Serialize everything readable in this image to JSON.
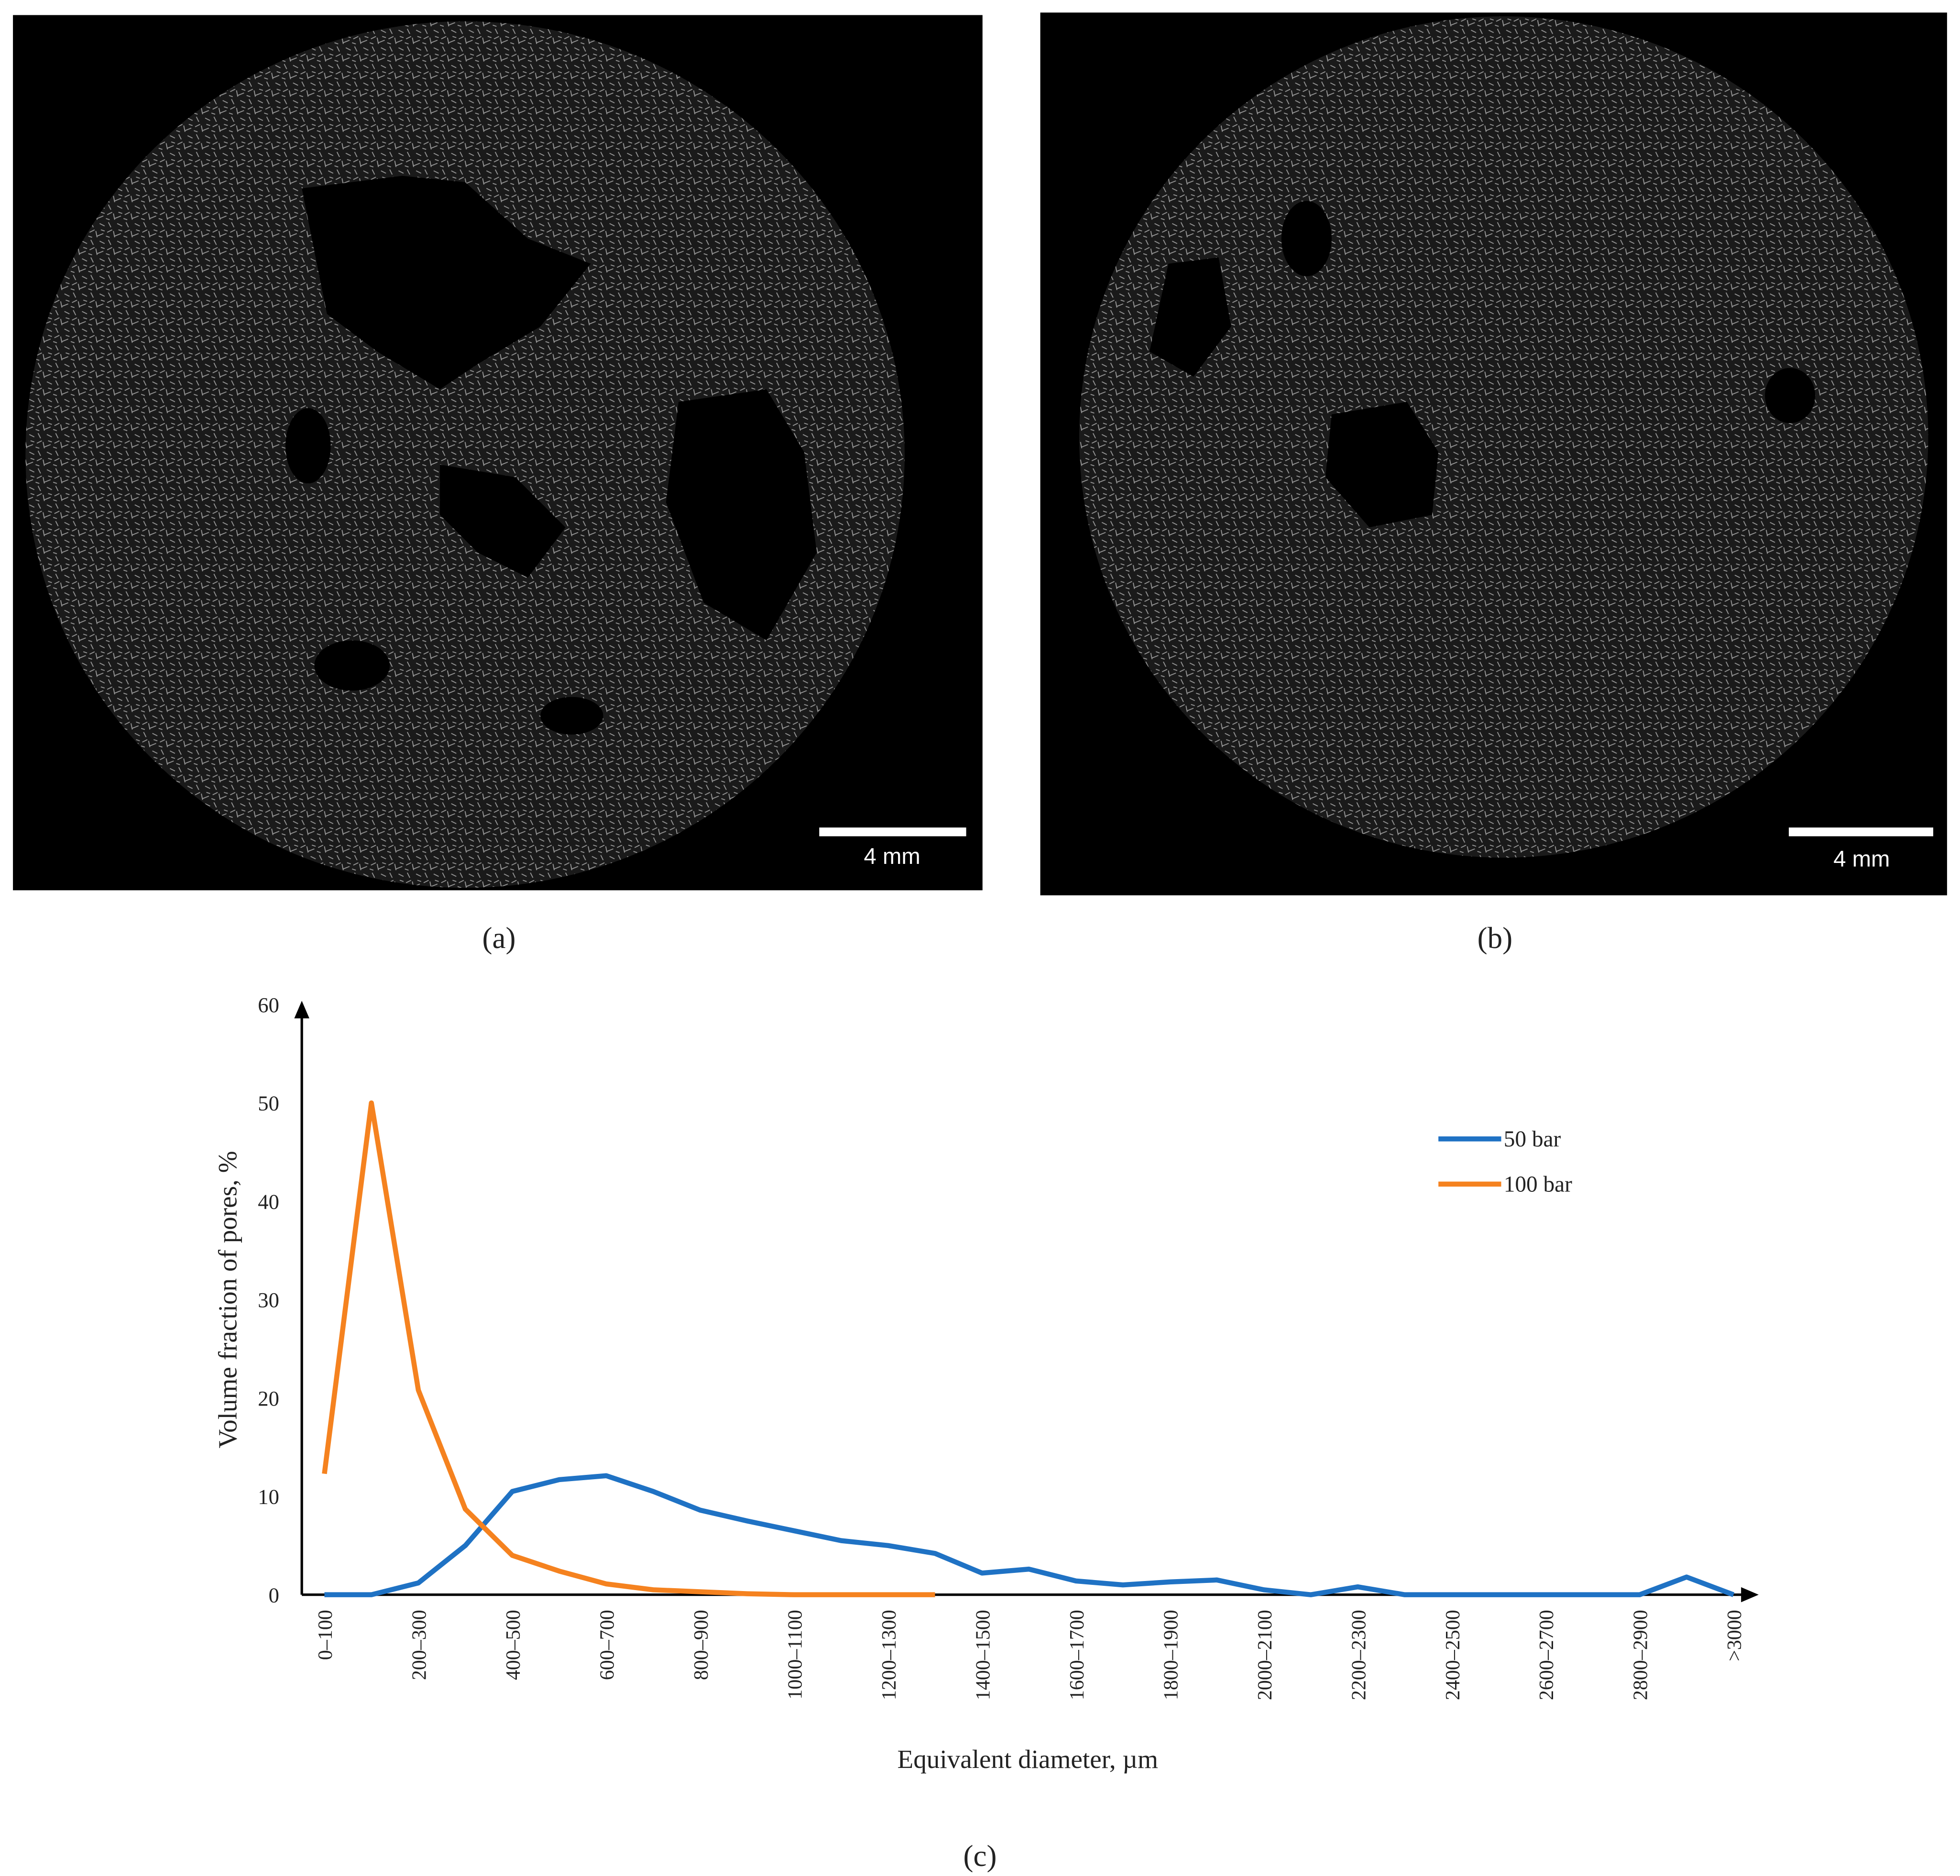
{
  "panels": [
    {
      "label": "(a)",
      "scale_bar": "4 mm"
    },
    {
      "label": "(b)",
      "scale_bar": "4 mm"
    }
  ],
  "chart_data": {
    "type": "line",
    "label": "(c)",
    "x_label": "Equivalent diameter, µm",
    "y_label": "Volume fraction of pores, %",
    "categories": [
      "0–100",
      null,
      "200–300",
      null,
      "400–500",
      null,
      "600–700",
      null,
      "800–900",
      null,
      "1000–1100",
      null,
      "1200–1300",
      null,
      "1400–1500",
      null,
      "1600–1700",
      null,
      "1800–1900",
      null,
      "2000–2100",
      null,
      "2200–2300",
      null,
      "2400–2500",
      null,
      "2600–2700",
      null,
      "2800–2900",
      null,
      ">3000"
    ],
    "series": [
      {
        "name": "50 bar",
        "color": "#1f72c4",
        "values": [
          0,
          0,
          1.2,
          5,
          10.5,
          11.7,
          12.1,
          10.5,
          8.6,
          7.5,
          6.5,
          5.5,
          5.0,
          4.2,
          2.2,
          2.6,
          1.4,
          1.0,
          1.3,
          1.5,
          0.5,
          0,
          0.8,
          0,
          0,
          0,
          0,
          0,
          0,
          1.8,
          0
        ]
      },
      {
        "name": "100 bar",
        "color": "#f5821f",
        "values": [
          12.3,
          50,
          20.8,
          8.7,
          4.0,
          2.4,
          1.1,
          0.5,
          0.3,
          0.1,
          0,
          0,
          0,
          0,
          null,
          null,
          null,
          null,
          null,
          null,
          null,
          null,
          null,
          null,
          null,
          null,
          null,
          null,
          null,
          null,
          null
        ]
      }
    ],
    "ylim": [
      0,
      60
    ],
    "yticks": [
      0,
      10,
      20,
      30,
      40,
      50,
      60
    ],
    "grid": false
  }
}
